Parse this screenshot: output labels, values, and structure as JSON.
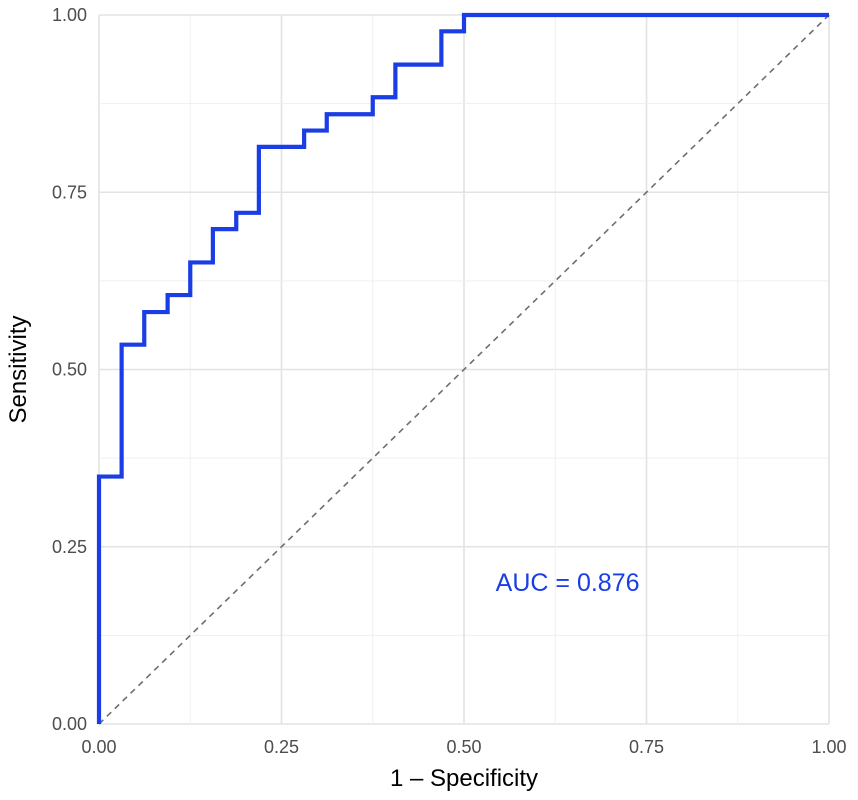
{
  "chart_data": {
    "type": "line",
    "xlabel": "1 – Specificity",
    "ylabel": "Sensitivity",
    "xlim": [
      0,
      1
    ],
    "ylim": [
      0,
      1
    ],
    "x_ticks": [
      "0.00",
      "0.25",
      "0.50",
      "0.75",
      "1.00"
    ],
    "y_ticks": [
      "0.00",
      "0.25",
      "0.50",
      "0.75",
      "1.00"
    ],
    "grid": true,
    "series": [
      {
        "style": "step",
        "color": "#1a3de6",
        "x": [
          0.0,
          0.0,
          0.031,
          0.031,
          0.062,
          0.062,
          0.094,
          0.094,
          0.125,
          0.125,
          0.156,
          0.156,
          0.188,
          0.188,
          0.219,
          0.219,
          0.281,
          0.281,
          0.312,
          0.312,
          0.375,
          0.375,
          0.406,
          0.406,
          0.469,
          0.469,
          0.5,
          0.5,
          1.0
        ],
        "y": [
          0.0,
          0.349,
          0.349,
          0.535,
          0.535,
          0.581,
          0.581,
          0.605,
          0.605,
          0.651,
          0.651,
          0.698,
          0.698,
          0.721,
          0.721,
          0.814,
          0.814,
          0.837,
          0.837,
          0.86,
          0.86,
          0.884,
          0.884,
          0.93,
          0.93,
          0.977,
          0.977,
          1.0,
          1.0
        ]
      },
      {
        "style": "dashed",
        "color": "#6e6e6e",
        "x": [
          0,
          1
        ],
        "y": [
          0,
          1
        ]
      }
    ],
    "annotations": [
      {
        "text": "AUC = 0.876",
        "x": 0.62,
        "y": 0.2,
        "color": "#1a3de6"
      }
    ]
  }
}
